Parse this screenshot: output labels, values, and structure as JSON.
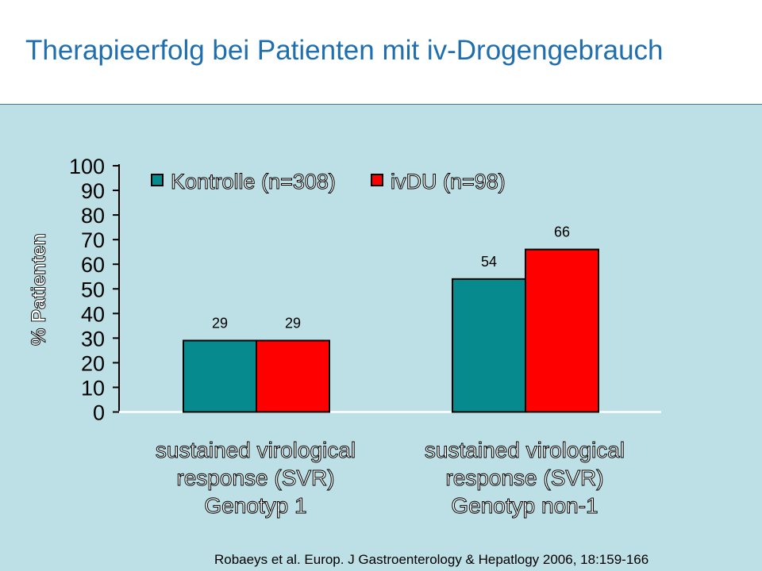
{
  "header": {
    "title": "Therapieerfolg bei Patienten mit iv-Drogengebrauch"
  },
  "citation": "Robaeys et al. Europ. J Gastroenterology & Hepatlogy 2006, 18:159-166",
  "colors": {
    "title": "#1f6fae",
    "panel_background": "#bde0e6",
    "kontrolle": "#078a8d",
    "ivdu": "#ff0000"
  },
  "chart_data": {
    "type": "bar",
    "ylabel": "% Patienten",
    "ylim": [
      0,
      100
    ],
    "yticks": [
      "0",
      "10",
      "20",
      "30",
      "40",
      "50",
      "60",
      "70",
      "80",
      "90",
      "100"
    ],
    "legend_position": "top",
    "grid": false,
    "categories": [
      [
        "sustained virological",
        "response (SVR)",
        "Genotyp 1"
      ],
      [
        "sustained virological",
        "response (SVR)",
        "Genotyp non-1"
      ]
    ],
    "series": [
      {
        "name": "Kontrolle (n=308)",
        "color": "#078a8d",
        "values": [
          29,
          54
        ],
        "labels": [
          "29",
          "54"
        ]
      },
      {
        "name": "ivDU (n=98)",
        "color": "#ff0000",
        "values": [
          29,
          66
        ],
        "labels": [
          "29",
          "66"
        ]
      }
    ]
  }
}
